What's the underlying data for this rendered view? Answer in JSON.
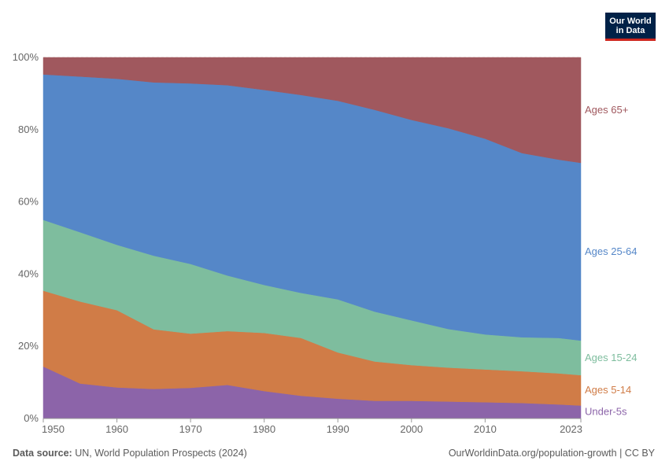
{
  "logo": {
    "line1": "Our World",
    "line2": "in Data"
  },
  "footer": {
    "source_label": "Data source:",
    "source_text": "UN, World Population Prospects (2024)",
    "url": "OurWorldinData.org/population-growth | CC BY"
  },
  "chart_data": {
    "type": "area",
    "stacked": true,
    "relative": true,
    "xlim": [
      1950,
      2023
    ],
    "ylim": [
      0,
      100
    ],
    "x_ticks": [
      "1950",
      "1960",
      "1970",
      "1980",
      "1990",
      "2000",
      "2010",
      "2023"
    ],
    "y_ticks": [
      "0%",
      "20%",
      "40%",
      "60%",
      "80%",
      "100%"
    ],
    "grid": "horizontal",
    "legend": "right, inline at end of series",
    "x": [
      1950,
      1955,
      1960,
      1965,
      1970,
      1975,
      1980,
      1985,
      1990,
      1995,
      2000,
      2005,
      2010,
      2015,
      2020,
      2023
    ],
    "series": [
      {
        "name": "Under-5s",
        "color": "#8c64a9",
        "values": [
          14.4,
          9.7,
          8.6,
          8.2,
          8.5,
          9.3,
          7.6,
          6.3,
          5.5,
          4.9,
          4.9,
          4.7,
          4.5,
          4.3,
          3.9,
          3.6
        ]
      },
      {
        "name": "Ages 5-14",
        "color": "#d07c47",
        "values": [
          21.0,
          22.7,
          21.4,
          16.5,
          15.0,
          14.9,
          16.1,
          16.0,
          12.8,
          10.9,
          9.9,
          9.4,
          9.1,
          8.8,
          8.6,
          8.4
        ]
      },
      {
        "name": "Ages 15-24",
        "color": "#7ebd9e",
        "values": [
          19.6,
          19.2,
          18.1,
          20.4,
          19.3,
          15.4,
          13.3,
          12.5,
          14.7,
          13.8,
          12.4,
          10.7,
          9.7,
          9.4,
          9.8,
          9.6
        ]
      },
      {
        "name": "Ages 25-64",
        "color": "#5587c8",
        "values": [
          40.3,
          43.1,
          46.0,
          48.0,
          50.0,
          52.7,
          54.0,
          54.8,
          55.0,
          55.9,
          55.5,
          55.6,
          54.2,
          51.0,
          49.4,
          49.2
        ]
      },
      {
        "name": "Ages 65+",
        "color": "#a0585e",
        "values": [
          4.7,
          5.3,
          5.9,
          6.9,
          7.2,
          7.7,
          9.0,
          10.4,
          12.0,
          14.5,
          17.3,
          19.6,
          22.5,
          26.5,
          28.3,
          29.2
        ]
      }
    ]
  }
}
